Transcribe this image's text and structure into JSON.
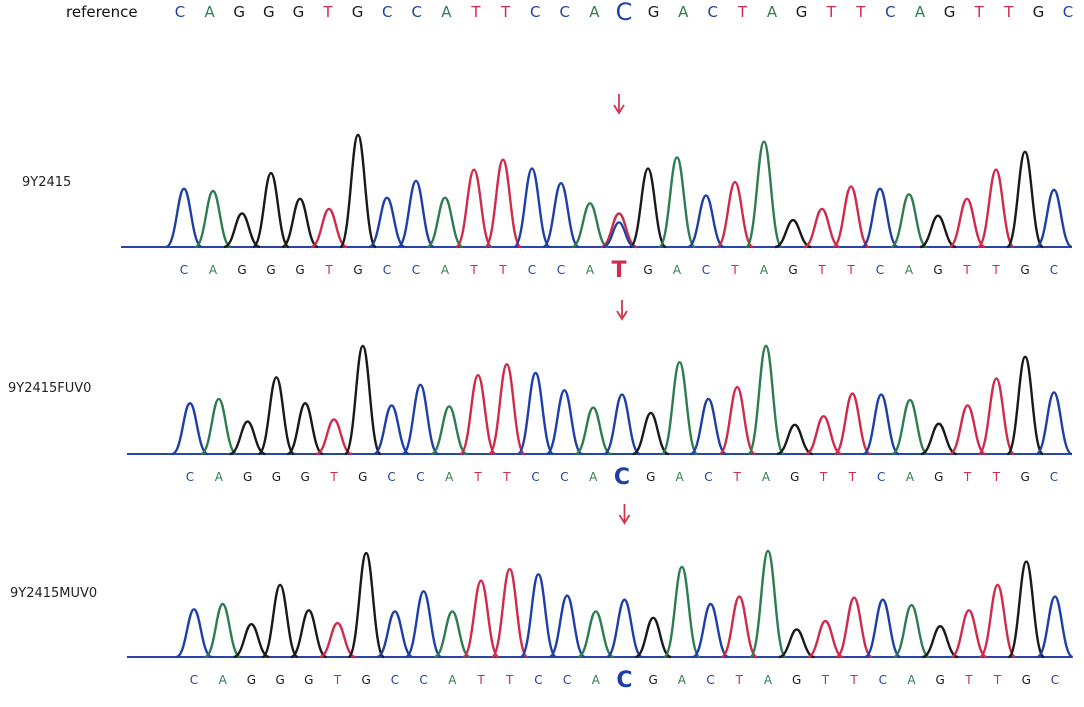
{
  "colors": {
    "A": "#2e7d4f",
    "C": "#1f3fa8",
    "G": "#1a1a1a",
    "T": "#cf2b4a",
    "arrow": "#d0374a",
    "baseline": "#2a45a8"
  },
  "reference": {
    "label": "reference",
    "sequence": [
      "C",
      "A",
      "G",
      "G",
      "G",
      "T",
      "G",
      "C",
      "C",
      "A",
      "T",
      "T",
      "C",
      "C",
      "A",
      "C",
      "G",
      "A",
      "C",
      "T",
      "A",
      "G",
      "T",
      "T",
      "C",
      "A",
      "G",
      "T",
      "T",
      "G",
      "C"
    ]
  },
  "traces": [
    {
      "label": "9Y2415",
      "sequence": [
        "C",
        "A",
        "G",
        "G",
        "G",
        "T",
        "G",
        "C",
        "C",
        "A",
        "T",
        "T",
        "C",
        "C",
        "A",
        "T",
        "G",
        "A",
        "C",
        "T",
        "A",
        "G",
        "T",
        "T",
        "C",
        "A",
        "G",
        "T",
        "T",
        "G",
        "C"
      ],
      "peak_heights": [
        0.52,
        0.5,
        0.3,
        0.66,
        0.43,
        0.34,
        1.0,
        0.44,
        0.59,
        0.44,
        0.69,
        0.78,
        0.7,
        0.57,
        0.39,
        0.3,
        0.7,
        0.8,
        0.46,
        0.58,
        0.94,
        0.24,
        0.34,
        0.54,
        0.52,
        0.47,
        0.28,
        0.43,
        0.69,
        0.85,
        0.51
      ],
      "minor_peak": {
        "position": 15,
        "base": "C",
        "height": 0.22
      }
    },
    {
      "label": "9Y2415FUV0",
      "sequence": [
        "C",
        "A",
        "G",
        "G",
        "G",
        "T",
        "G",
        "C",
        "C",
        "A",
        "T",
        "T",
        "C",
        "C",
        "A",
        "C",
        "G",
        "A",
        "C",
        "T",
        "A",
        "G",
        "T",
        "T",
        "C",
        "A",
        "G",
        "T",
        "T",
        "G",
        "C"
      ],
      "peak_heights": [
        0.47,
        0.51,
        0.3,
        0.71,
        0.47,
        0.32,
        1.0,
        0.45,
        0.64,
        0.44,
        0.73,
        0.83,
        0.75,
        0.59,
        0.43,
        0.55,
        0.38,
        0.85,
        0.51,
        0.62,
        1.0,
        0.27,
        0.35,
        0.56,
        0.55,
        0.5,
        0.28,
        0.45,
        0.7,
        0.9,
        0.57
      ]
    },
    {
      "label": "9Y2415MUV0",
      "sequence": [
        "C",
        "A",
        "G",
        "G",
        "G",
        "T",
        "G",
        "C",
        "C",
        "A",
        "T",
        "T",
        "C",
        "C",
        "A",
        "C",
        "G",
        "A",
        "C",
        "T",
        "A",
        "G",
        "T",
        "T",
        "C",
        "A",
        "G",
        "T",
        "T",
        "G",
        "C"
      ],
      "peak_heights": [
        0.45,
        0.5,
        0.31,
        0.68,
        0.44,
        0.32,
        0.98,
        0.43,
        0.62,
        0.43,
        0.72,
        0.83,
        0.78,
        0.58,
        0.43,
        0.54,
        0.37,
        0.85,
        0.5,
        0.57,
        1.0,
        0.26,
        0.34,
        0.56,
        0.54,
        0.49,
        0.29,
        0.44,
        0.68,
        0.9,
        0.57
      ]
    }
  ],
  "variant_position": 15
}
